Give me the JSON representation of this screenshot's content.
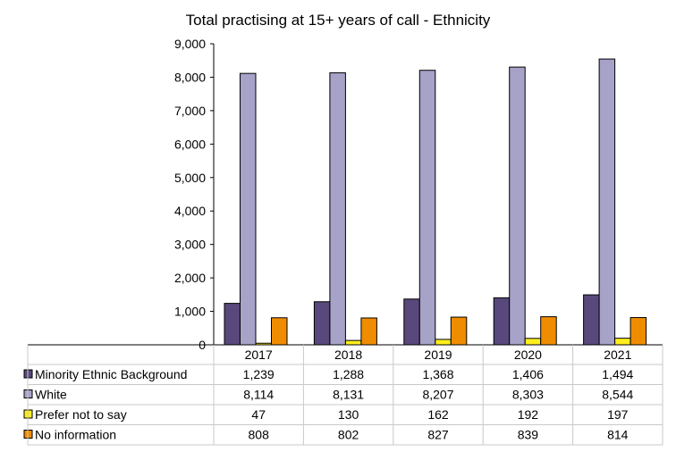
{
  "chart_data": {
    "type": "bar",
    "title": "Total practising at 15+ years of call - Ethnicity",
    "categories": [
      "2017",
      "2018",
      "2019",
      "2020",
      "2021"
    ],
    "ylim": [
      0,
      9000
    ],
    "yticks": [
      "0",
      "1,000",
      "2,000",
      "3,000",
      "4,000",
      "5,000",
      "6,000",
      "7,000",
      "8,000",
      "9,000"
    ],
    "grid": false,
    "legend": "data table below chart",
    "series": [
      {
        "name": "Minority Ethnic Background",
        "color": "#58487c",
        "values": [
          1239,
          1288,
          1368,
          1406,
          1494
        ],
        "labels": [
          "1,239",
          "1,288",
          "1,368",
          "1,406",
          "1,494"
        ]
      },
      {
        "name": "White",
        "color": "#a6a2c8",
        "values": [
          8114,
          8131,
          8207,
          8303,
          8544
        ],
        "labels": [
          "8,114",
          "8,131",
          "8,207",
          "8,303",
          "8,544"
        ]
      },
      {
        "name": "Prefer not to say",
        "color": "#ffee1c",
        "values": [
          47,
          130,
          162,
          192,
          197
        ],
        "labels": [
          "47",
          "130",
          "162",
          "192",
          "197"
        ]
      },
      {
        "name": "No information",
        "color": "#f08c00",
        "values": [
          808,
          802,
          827,
          839,
          814
        ],
        "labels": [
          "808",
          "802",
          "827",
          "839",
          "814"
        ]
      }
    ]
  }
}
